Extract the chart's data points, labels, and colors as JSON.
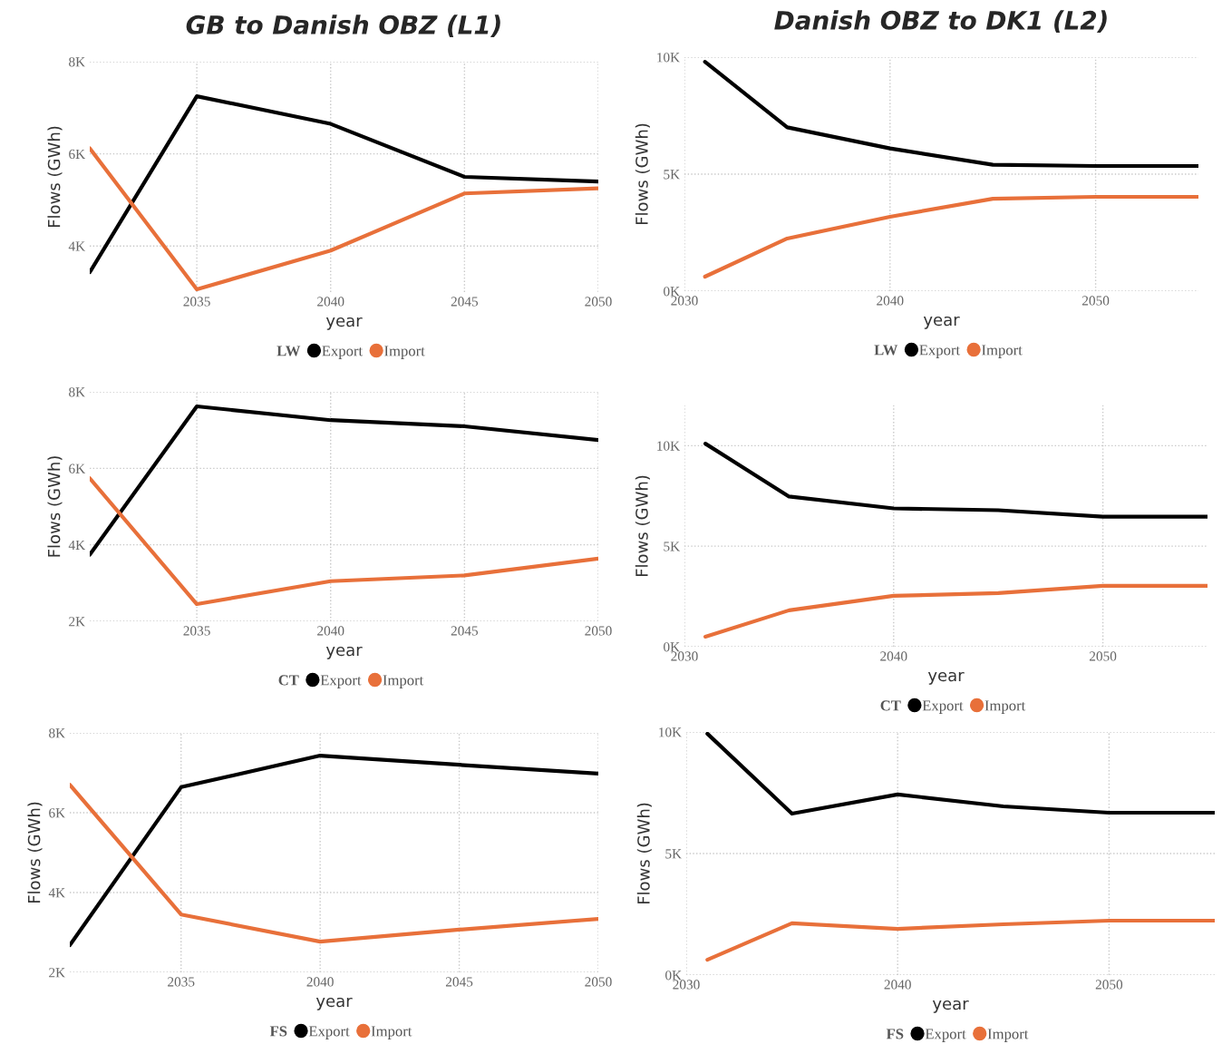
{
  "chart_data": [
    {
      "type": "line",
      "title": "GB to Danish OBZ (L1)",
      "xlabel": "year",
      "ylabel": "Flows (GWh)",
      "legend_title": "LW",
      "legend": "bottom",
      "grid": true,
      "x": [
        2031,
        2035,
        2040,
        2045,
        2050
      ],
      "xlim": [
        2031,
        2050
      ],
      "xticks": [
        2035,
        2040,
        2045,
        2050
      ],
      "ylim": [
        3000,
        8000
      ],
      "yticks": [
        {
          "value": 4000,
          "label": "4K"
        },
        {
          "value": 6000,
          "label": "6K"
        },
        {
          "value": 8000,
          "label": "8K"
        }
      ],
      "series": [
        {
          "name": "Export",
          "color": "#000000",
          "values": [
            3430,
            7250,
            6650,
            5500,
            5400
          ]
        },
        {
          "name": "Import",
          "color": "#e8703a",
          "values": [
            6120,
            3060,
            3900,
            5140,
            5250
          ]
        }
      ]
    },
    {
      "type": "line",
      "title": "Danish OBZ to DK1 (L2)",
      "xlabel": "year",
      "ylabel": "Flows (GWh)",
      "legend_title": "LW",
      "legend": "bottom",
      "grid": true,
      "x": [
        2031,
        2035,
        2040,
        2045,
        2050,
        2055
      ],
      "xlim": [
        2030,
        2055
      ],
      "xticks": [
        2030,
        2040,
        2050
      ],
      "ylim": [
        0,
        10000
      ],
      "yticks": [
        {
          "value": 0,
          "label": "0K"
        },
        {
          "value": 5000,
          "label": "5K"
        },
        {
          "value": 10000,
          "label": "10K"
        }
      ],
      "series": [
        {
          "name": "Export",
          "color": "#000000",
          "values": [
            9800,
            7000,
            6100,
            5400,
            5350,
            5350
          ]
        },
        {
          "name": "Import",
          "color": "#e8703a",
          "values": [
            620,
            2250,
            3180,
            3950,
            4030,
            4030
          ]
        }
      ]
    },
    {
      "type": "line",
      "xlabel": "year",
      "ylabel": "Flows (GWh)",
      "legend_title": "CT",
      "legend": "bottom",
      "grid": true,
      "x": [
        2031,
        2035,
        2040,
        2045,
        2050
      ],
      "xlim": [
        2031,
        2050
      ],
      "xticks": [
        2035,
        2040,
        2045,
        2050
      ],
      "ylim": [
        2000,
        8000
      ],
      "yticks": [
        {
          "value": 2000,
          "label": "2K"
        },
        {
          "value": 4000,
          "label": "4K"
        },
        {
          "value": 6000,
          "label": "6K"
        },
        {
          "value": 8000,
          "label": "8K"
        }
      ],
      "series": [
        {
          "name": "Export",
          "color": "#000000",
          "values": [
            3740,
            7620,
            7260,
            7100,
            6740
          ]
        },
        {
          "name": "Import",
          "color": "#e8703a",
          "values": [
            5740,
            2450,
            3050,
            3200,
            3640
          ]
        }
      ]
    },
    {
      "type": "line",
      "xlabel": "year",
      "ylabel": "Flows (GWh)",
      "legend_title": "CT",
      "legend": "bottom",
      "grid": true,
      "x": [
        2031,
        2035,
        2040,
        2045,
        2050,
        2055
      ],
      "xlim": [
        2030,
        2055
      ],
      "xticks": [
        2030,
        2040,
        2050
      ],
      "ylim": [
        0,
        12000
      ],
      "yticks": [
        {
          "value": 0,
          "label": "0K"
        },
        {
          "value": 5000,
          "label": "5K"
        },
        {
          "value": 10000,
          "label": "10K"
        }
      ],
      "series": [
        {
          "name": "Export",
          "color": "#000000",
          "values": [
            10100,
            7470,
            6880,
            6790,
            6470,
            6470
          ]
        },
        {
          "name": "Import",
          "color": "#e8703a",
          "values": [
            500,
            1810,
            2530,
            2670,
            3030,
            3030
          ]
        }
      ]
    },
    {
      "type": "line",
      "xlabel": "year",
      "ylabel": "Flows (GWh)",
      "legend_title": "FS",
      "legend": "bottom",
      "grid": true,
      "x": [
        2031,
        2035,
        2040,
        2045,
        2050
      ],
      "xlim": [
        2031,
        2050
      ],
      "xticks": [
        2035,
        2040,
        2045,
        2050
      ],
      "ylim": [
        2000,
        8000
      ],
      "yticks": [
        {
          "value": 2000,
          "label": "2K"
        },
        {
          "value": 4000,
          "label": "4K"
        },
        {
          "value": 6000,
          "label": "6K"
        },
        {
          "value": 8000,
          "label": "8K"
        }
      ],
      "series": [
        {
          "name": "Export",
          "color": "#000000",
          "values": [
            2680,
            6640,
            7430,
            7200,
            6980
          ]
        },
        {
          "name": "Import",
          "color": "#e8703a",
          "values": [
            6700,
            3450,
            2770,
            3070,
            3340
          ]
        }
      ]
    },
    {
      "type": "line",
      "xlabel": "year",
      "ylabel": "Flows (GWh)",
      "legend_title": "FS",
      "legend": "bottom",
      "grid": true,
      "x": [
        2031,
        2035,
        2040,
        2045,
        2050,
        2055
      ],
      "xlim": [
        2030,
        2055
      ],
      "xticks": [
        2030,
        2040,
        2050
      ],
      "ylim": [
        0,
        10000
      ],
      "yticks": [
        {
          "value": 0,
          "label": "0K"
        },
        {
          "value": 5000,
          "label": "5K"
        },
        {
          "value": 10000,
          "label": "10K"
        }
      ],
      "series": [
        {
          "name": "Export",
          "color": "#000000",
          "values": [
            9930,
            6640,
            7430,
            6940,
            6680,
            6680
          ]
        },
        {
          "name": "Import",
          "color": "#e8703a",
          "values": [
            630,
            2130,
            1900,
            2090,
            2240,
            2240
          ]
        }
      ]
    }
  ]
}
